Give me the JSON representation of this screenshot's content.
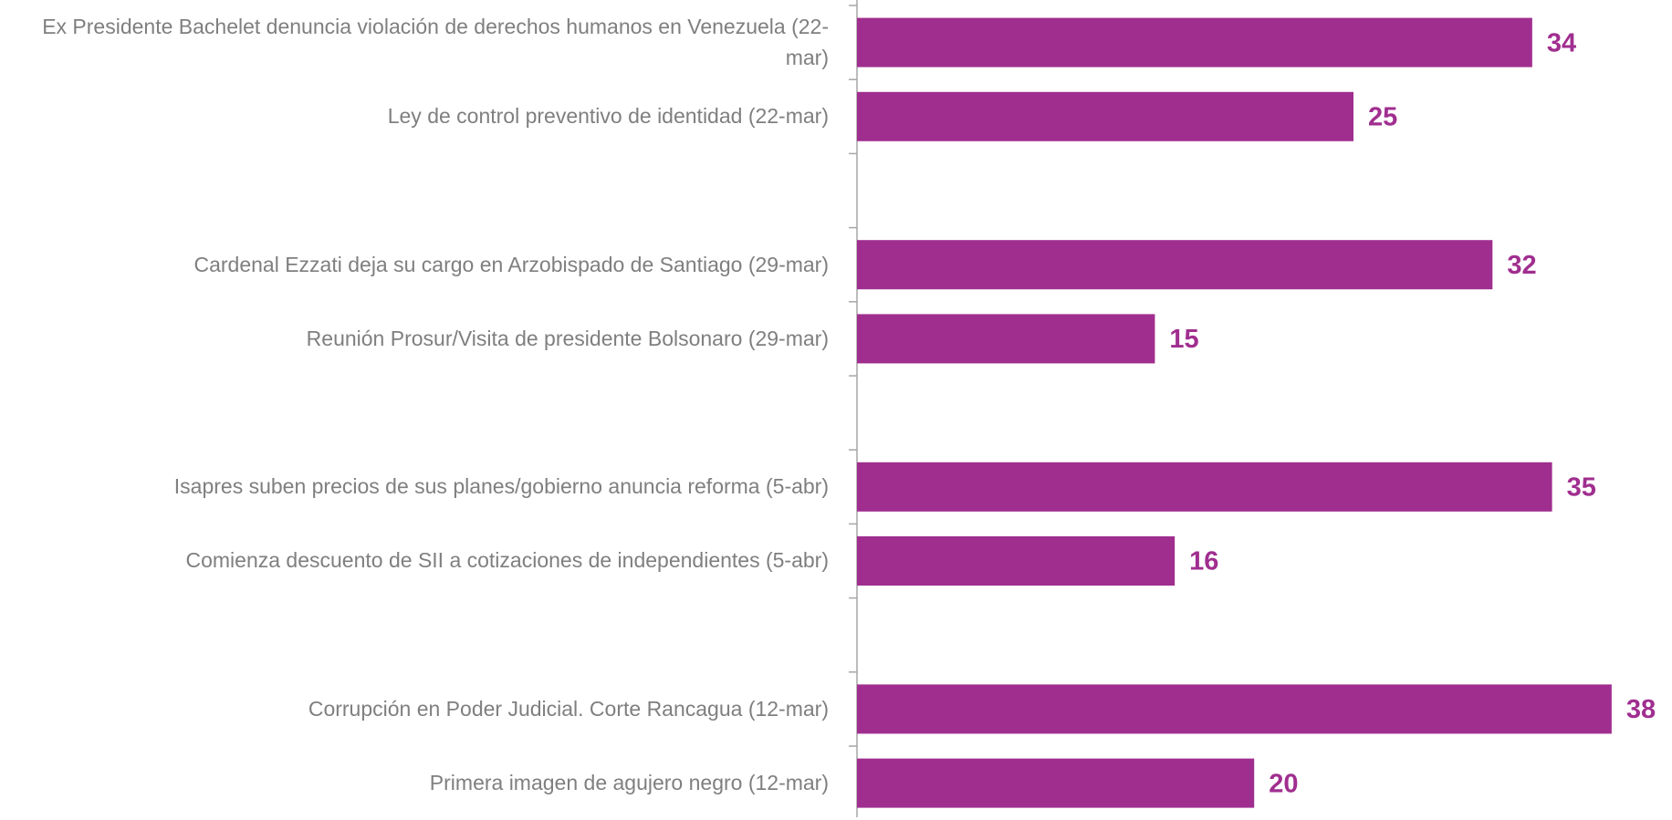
{
  "chart_data": {
    "type": "bar",
    "orientation": "horizontal",
    "categories": [
      "Ex Presidente Bachelet denuncia violación de derechos humanos en Venezuela (22-mar)",
      "Ley de control preventivo de identidad (22-mar)",
      null,
      "Cardenal Ezzati deja su cargo en Arzobispado de Santiago (29-mar)",
      "Reunión Prosur/Visita de presidente Bolsonaro (29-mar)",
      null,
      "Isapres suben precios de sus planes/gobierno anuncia reforma (5-abr)",
      "Comienza descuento de SII a cotizaciones de independientes  (5-abr)",
      null,
      "Corrupción en Poder Judicial. Corte Rancagua (12-mar)",
      "Primera imagen de agujero negro (12-mar)"
    ],
    "values": [
      34,
      25,
      null,
      32,
      15,
      null,
      35,
      16,
      null,
      38,
      20
    ],
    "color": "#a02e8f"
  }
}
